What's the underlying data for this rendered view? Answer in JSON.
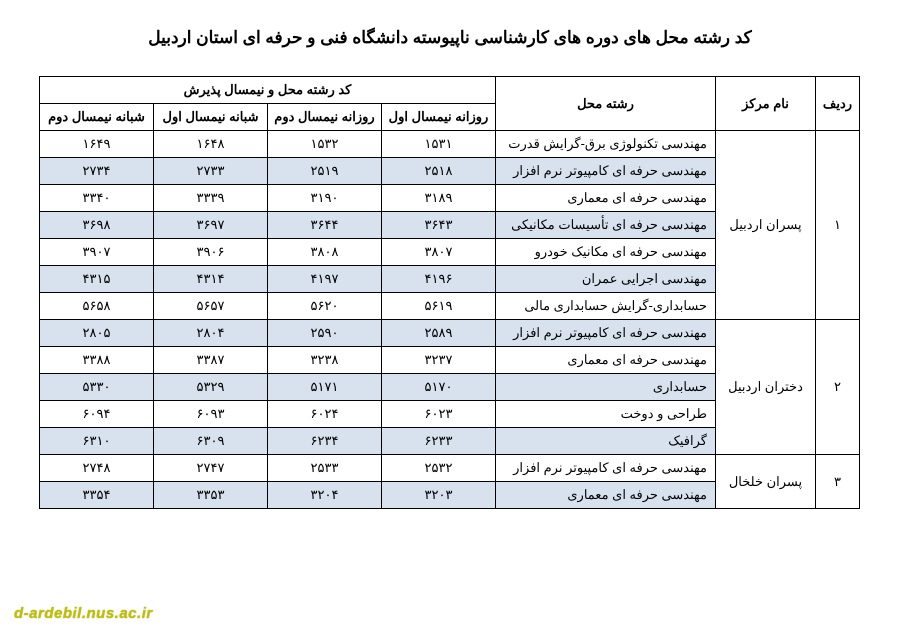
{
  "title": "کد رشته محل های دوره های کارشناسی ناپیوسته دانشگاه فنی و حرفه ای استان اردبیل",
  "headers": {
    "radif": "ردیف",
    "center": "نام مرکز",
    "major": "رشته محل",
    "code_group": "کد رشته محل و نیمسال پذیرش",
    "day1": "روزانه نیمسال اول",
    "day2": "روزانه نیمسال دوم",
    "night1": "شبانه نیمسال اول",
    "night2": "شبانه نیمسال دوم"
  },
  "colors": {
    "alt_row": "#d7e2ee",
    "plain_row": "#ffffff",
    "border": "#000000",
    "text": "#000000",
    "watermark": "#c0c000"
  },
  "groups": [
    {
      "radif": "۱",
      "center": "پسران اردبیل",
      "rows": [
        {
          "major": "مهندسی تکنولوژی برق-گرایش قدرت",
          "day1": "۱۵۳۱",
          "day2": "۱۵۳۲",
          "night1": "۱۶۴۸",
          "night2": "۱۶۴۹",
          "alt": false
        },
        {
          "major": "مهندسی حرفه ای کامپیوتر نرم افزار",
          "day1": "۲۵۱۸",
          "day2": "۲۵۱۹",
          "night1": "۲۷۳۳",
          "night2": "۲۷۳۴",
          "alt": true
        },
        {
          "major": "مهندسی حرفه ای معماری",
          "day1": "۳۱۸۹",
          "day2": "۳۱۹۰",
          "night1": "۳۳۳۹",
          "night2": "۳۳۴۰",
          "alt": false
        },
        {
          "major": "مهندسی حرفه ای تأسیسات مکانیکی",
          "day1": "۳۶۴۳",
          "day2": "۳۶۴۴",
          "night1": "۳۶۹۷",
          "night2": "۳۶۹۸",
          "alt": true
        },
        {
          "major": "مهندسی حرفه ای مکانیک خودرو",
          "day1": "۳۸۰۷",
          "day2": "۳۸۰۸",
          "night1": "۳۹۰۶",
          "night2": "۳۹۰۷",
          "alt": false
        },
        {
          "major": "مهندسی اجرایی عمران",
          "day1": "۴۱۹۶",
          "day2": "۴۱۹۷",
          "night1": "۴۳۱۴",
          "night2": "۴۳۱۵",
          "alt": true
        },
        {
          "major": "حسابداری-گرایش حسابداری مالی",
          "day1": "۵۶۱۹",
          "day2": "۵۶۲۰",
          "night1": "۵۶۵۷",
          "night2": "۵۶۵۸",
          "alt": false
        }
      ]
    },
    {
      "radif": "۲",
      "center": "دختران اردبیل",
      "rows": [
        {
          "major": "مهندسی حرفه ای کامپیوتر نرم افزار",
          "day1": "۲۵۸۹",
          "day2": "۲۵۹۰",
          "night1": "۲۸۰۴",
          "night2": "۲۸۰۵",
          "alt": true
        },
        {
          "major": "مهندسی حرفه ای معماری",
          "day1": "۳۲۳۷",
          "day2": "۳۲۳۸",
          "night1": "۳۳۸۷",
          "night2": "۳۳۸۸",
          "alt": false
        },
        {
          "major": "حسابداری",
          "day1": "۵۱۷۰",
          "day2": "۵۱۷۱",
          "night1": "۵۳۲۹",
          "night2": "۵۳۳۰",
          "alt": true
        },
        {
          "major": "طراحی و دوخت",
          "day1": "۶۰۲۳",
          "day2": "۶۰۲۴",
          "night1": "۶۰۹۳",
          "night2": "۶۰۹۴",
          "alt": false
        },
        {
          "major": "گرافیک",
          "day1": "۶۲۳۳",
          "day2": "۶۲۳۴",
          "night1": "۶۳۰۹",
          "night2": "۶۳۱۰",
          "alt": true
        }
      ]
    },
    {
      "radif": "۳",
      "center": "پسران خلخال",
      "rows": [
        {
          "major": "مهندسی حرفه ای کامپیوتر نرم افزار",
          "day1": "۲۵۳۲",
          "day2": "۲۵۳۳",
          "night1": "۲۷۴۷",
          "night2": "۲۷۴۸",
          "alt": false
        },
        {
          "major": "مهندسی حرفه ای معماری",
          "day1": "۳۲۰۳",
          "day2": "۳۲۰۴",
          "night1": "۳۳۵۳",
          "night2": "۳۳۵۴",
          "alt": true
        }
      ]
    }
  ],
  "watermark": "d-ardebil.nus.ac.ir"
}
